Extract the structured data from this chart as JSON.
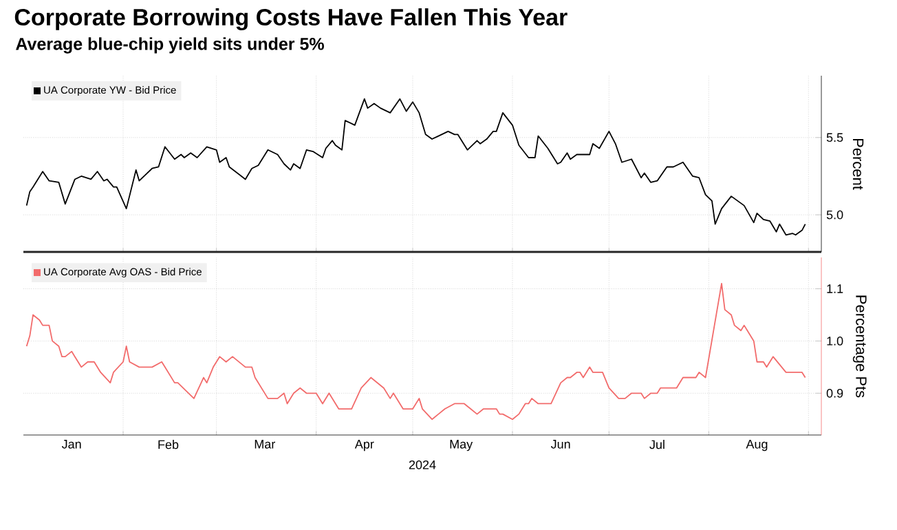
{
  "chart_data": [
    {
      "type": "line",
      "title": "Corporate Borrowing Costs Have Fallen This Year",
      "subtitle": "Average blue-chip yield sits under 5%",
      "ylabel": "Percent",
      "xlim": [
        "2024-01-01",
        "2024-09-05"
      ],
      "ylim": [
        4.76,
        5.9
      ],
      "xticks": [
        {
          "value": "2024-02-01",
          "label": null
        },
        {
          "value": "2024-03-01",
          "label": null
        },
        {
          "value": "2024-04-01",
          "label": null
        },
        {
          "value": "2024-05-01",
          "label": null
        },
        {
          "value": "2024-06-01",
          "label": null
        },
        {
          "value": "2024-07-01",
          "label": null
        },
        {
          "value": "2024-08-01",
          "label": null
        },
        {
          "value": "2024-09-01",
          "label": null
        }
      ],
      "yticks": [
        {
          "value": 5.0,
          "label": "5.0"
        },
        {
          "value": 5.5,
          "label": "5.5"
        }
      ],
      "tick_labels": "y",
      "grid": true,
      "legend": "top left",
      "series": [
        {
          "name": "UA Corporate YW - Bid Price",
          "color": "#000000",
          "x": [
            "2024-01-02",
            "2024-01-03",
            "2024-01-04",
            "2024-01-07",
            "2024-01-09",
            "2024-01-12",
            "2024-01-14",
            "2024-01-17",
            "2024-01-19",
            "2024-01-22",
            "2024-01-24",
            "2024-01-26",
            "2024-01-27",
            "2024-01-29",
            "2024-01-30",
            "2024-02-02",
            "2024-02-05",
            "2024-02-06",
            "2024-02-10",
            "2024-02-12",
            "2024-02-14",
            "2024-02-17",
            "2024-02-19",
            "2024-02-20",
            "2024-02-22",
            "2024-02-24",
            "2024-02-27",
            "2024-03-01",
            "2024-03-02",
            "2024-03-04",
            "2024-03-05",
            "2024-03-10",
            "2024-03-12",
            "2024-03-14",
            "2024-03-17",
            "2024-03-20",
            "2024-03-22",
            "2024-03-24",
            "2024-03-25",
            "2024-03-27",
            "2024-03-29",
            "2024-03-31",
            "2024-04-03",
            "2024-04-04",
            "2024-04-06",
            "2024-04-07",
            "2024-04-09",
            "2024-04-10",
            "2024-04-13",
            "2024-04-16",
            "2024-04-17",
            "2024-04-19",
            "2024-04-21",
            "2024-04-24",
            "2024-04-27",
            "2024-04-29",
            "2024-05-01",
            "2024-05-03",
            "2024-05-05",
            "2024-05-07",
            "2024-05-09",
            "2024-05-12",
            "2024-05-14",
            "2024-05-15",
            "2024-05-18",
            "2024-05-21",
            "2024-05-22",
            "2024-05-24",
            "2024-05-26",
            "2024-05-27",
            "2024-05-29",
            "2024-06-01",
            "2024-06-03",
            "2024-06-06",
            "2024-06-08",
            "2024-06-09",
            "2024-06-12",
            "2024-06-15",
            "2024-06-16",
            "2024-06-18",
            "2024-06-19",
            "2024-06-21",
            "2024-06-23",
            "2024-06-25",
            "2024-06-26",
            "2024-06-28",
            "2024-07-01",
            "2024-07-03",
            "2024-07-05",
            "2024-07-08",
            "2024-07-11",
            "2024-07-12",
            "2024-07-14",
            "2024-07-16",
            "2024-07-19",
            "2024-07-21",
            "2024-07-24",
            "2024-07-25",
            "2024-07-27",
            "2024-07-29",
            "2024-07-31",
            "2024-08-02",
            "2024-08-03",
            "2024-08-05",
            "2024-08-08",
            "2024-08-12",
            "2024-08-15",
            "2024-08-16",
            "2024-08-18",
            "2024-08-20",
            "2024-08-22",
            "2024-08-23",
            "2024-08-25",
            "2024-08-27",
            "2024-08-28",
            "2024-08-30",
            "2024-08-31"
          ],
          "values": [
            5.06,
            5.15,
            5.18,
            5.28,
            5.22,
            5.21,
            5.07,
            5.23,
            5.25,
            5.23,
            5.28,
            5.22,
            5.23,
            5.18,
            5.18,
            5.04,
            5.29,
            5.22,
            5.3,
            5.31,
            5.44,
            5.36,
            5.39,
            5.37,
            5.4,
            5.37,
            5.44,
            5.42,
            5.34,
            5.37,
            5.31,
            5.23,
            5.3,
            5.32,
            5.42,
            5.39,
            5.33,
            5.29,
            5.33,
            5.3,
            5.42,
            5.41,
            5.37,
            5.43,
            5.48,
            5.45,
            5.42,
            5.61,
            5.58,
            5.75,
            5.69,
            5.72,
            5.69,
            5.66,
            5.75,
            5.67,
            5.73,
            5.66,
            5.52,
            5.49,
            5.51,
            5.54,
            5.52,
            5.52,
            5.42,
            5.48,
            5.46,
            5.49,
            5.54,
            5.54,
            5.66,
            5.58,
            5.45,
            5.37,
            5.37,
            5.51,
            5.43,
            5.33,
            5.34,
            5.4,
            5.36,
            5.39,
            5.39,
            5.39,
            5.46,
            5.43,
            5.54,
            5.46,
            5.34,
            5.36,
            5.24,
            5.27,
            5.21,
            5.22,
            5.31,
            5.31,
            5.34,
            5.31,
            5.25,
            5.24,
            5.13,
            5.09,
            4.94,
            5.04,
            5.12,
            5.06,
            4.95,
            5.01,
            4.97,
            4.96,
            4.89,
            4.94,
            4.87,
            4.88,
            4.87,
            4.9,
            4.94
          ]
        }
      ]
    },
    {
      "type": "line",
      "ylabel": "Percentage Pts",
      "xlabel": "2024",
      "xlim": [
        "2024-01-01",
        "2024-09-05"
      ],
      "ylim": [
        0.82,
        1.16
      ],
      "xticks": [
        {
          "value": "2024-01-16",
          "label": "Jan"
        },
        {
          "value": "2024-02-01",
          "label": null
        },
        {
          "value": "2024-02-15",
          "label": "Feb"
        },
        {
          "value": "2024-03-01",
          "label": null
        },
        {
          "value": "2024-03-16",
          "label": "Mar"
        },
        {
          "value": "2024-04-01",
          "label": null
        },
        {
          "value": "2024-04-16",
          "label": "Apr"
        },
        {
          "value": "2024-05-01",
          "label": null
        },
        {
          "value": "2024-05-16",
          "label": "May"
        },
        {
          "value": "2024-06-01",
          "label": null
        },
        {
          "value": "2024-06-16",
          "label": "Jun"
        },
        {
          "value": "2024-07-01",
          "label": null
        },
        {
          "value": "2024-07-16",
          "label": "Jul"
        },
        {
          "value": "2024-08-01",
          "label": null
        },
        {
          "value": "2024-08-16",
          "label": "Aug"
        },
        {
          "value": "2024-09-01",
          "label": null
        }
      ],
      "yticks": [
        {
          "value": 0.9,
          "label": "0.9"
        },
        {
          "value": 1.0,
          "label": "1.0"
        },
        {
          "value": 1.1,
          "label": "1.1"
        }
      ],
      "grid": true,
      "legend": "top left",
      "series": [
        {
          "name": "UA Corporate Avg OAS - Bid Price",
          "color": "#f26b6b",
          "x": [
            "2024-01-02",
            "2024-01-03",
            "2024-01-04",
            "2024-01-06",
            "2024-01-07",
            "2024-01-09",
            "2024-01-10",
            "2024-01-12",
            "2024-01-13",
            "2024-01-14",
            "2024-01-16",
            "2024-01-17",
            "2024-01-19",
            "2024-01-21",
            "2024-01-23",
            "2024-01-25",
            "2024-01-28",
            "2024-01-29",
            "2024-02-01",
            "2024-02-02",
            "2024-02-03",
            "2024-02-06",
            "2024-02-10",
            "2024-02-13",
            "2024-02-14",
            "2024-02-17",
            "2024-02-18",
            "2024-02-23",
            "2024-02-26",
            "2024-02-27",
            "2024-02-29",
            "2024-03-02",
            "2024-03-04",
            "2024-03-06",
            "2024-03-10",
            "2024-03-12",
            "2024-03-13",
            "2024-03-17",
            "2024-03-20",
            "2024-03-22",
            "2024-03-23",
            "2024-03-25",
            "2024-03-27",
            "2024-03-29",
            "2024-04-01",
            "2024-04-03",
            "2024-04-05",
            "2024-04-08",
            "2024-04-12",
            "2024-04-15",
            "2024-04-18",
            "2024-04-20",
            "2024-04-22",
            "2024-04-24",
            "2024-04-25",
            "2024-04-28",
            "2024-05-01",
            "2024-05-03",
            "2024-05-04",
            "2024-05-07",
            "2024-05-09",
            "2024-05-11",
            "2024-05-14",
            "2024-05-15",
            "2024-05-17",
            "2024-05-19",
            "2024-05-21",
            "2024-05-23",
            "2024-05-27",
            "2024-05-28",
            "2024-05-29",
            "2024-06-01",
            "2024-06-03",
            "2024-06-05",
            "2024-06-06",
            "2024-06-07",
            "2024-06-09",
            "2024-06-13",
            "2024-06-16",
            "2024-06-18",
            "2024-06-19",
            "2024-06-21",
            "2024-06-22",
            "2024-06-23",
            "2024-06-25",
            "2024-06-26",
            "2024-06-29",
            "2024-07-01",
            "2024-07-04",
            "2024-07-06",
            "2024-07-08",
            "2024-07-11",
            "2024-07-12",
            "2024-07-14",
            "2024-07-16",
            "2024-07-17",
            "2024-07-22",
            "2024-07-24",
            "2024-07-28",
            "2024-07-29",
            "2024-07-31",
            "2024-08-05",
            "2024-08-06",
            "2024-08-08",
            "2024-08-09",
            "2024-08-11",
            "2024-08-12",
            "2024-08-13",
            "2024-08-15",
            "2024-08-16",
            "2024-08-18",
            "2024-08-19",
            "2024-08-21",
            "2024-08-25",
            "2024-08-30",
            "2024-08-31"
          ],
          "values": [
            0.99,
            1.01,
            1.05,
            1.04,
            1.03,
            1.03,
            1.0,
            0.99,
            0.97,
            0.97,
            0.98,
            0.97,
            0.95,
            0.96,
            0.96,
            0.94,
            0.92,
            0.94,
            0.96,
            0.99,
            0.96,
            0.95,
            0.95,
            0.96,
            0.95,
            0.92,
            0.92,
            0.89,
            0.93,
            0.92,
            0.95,
            0.97,
            0.96,
            0.97,
            0.95,
            0.95,
            0.93,
            0.89,
            0.89,
            0.9,
            0.88,
            0.9,
            0.91,
            0.9,
            0.9,
            0.88,
            0.9,
            0.87,
            0.87,
            0.91,
            0.93,
            0.92,
            0.91,
            0.89,
            0.9,
            0.87,
            0.87,
            0.89,
            0.87,
            0.85,
            0.86,
            0.87,
            0.88,
            0.88,
            0.88,
            0.87,
            0.86,
            0.87,
            0.87,
            0.86,
            0.86,
            0.85,
            0.86,
            0.88,
            0.88,
            0.89,
            0.88,
            0.88,
            0.92,
            0.93,
            0.93,
            0.94,
            0.94,
            0.93,
            0.95,
            0.94,
            0.94,
            0.91,
            0.89,
            0.89,
            0.9,
            0.9,
            0.89,
            0.9,
            0.9,
            0.91,
            0.91,
            0.93,
            0.93,
            0.94,
            0.93,
            1.11,
            1.06,
            1.05,
            1.03,
            1.02,
            1.03,
            1.02,
            1.0,
            0.96,
            0.96,
            0.95,
            0.97,
            0.94,
            0.94,
            0.93
          ]
        }
      ]
    }
  ]
}
